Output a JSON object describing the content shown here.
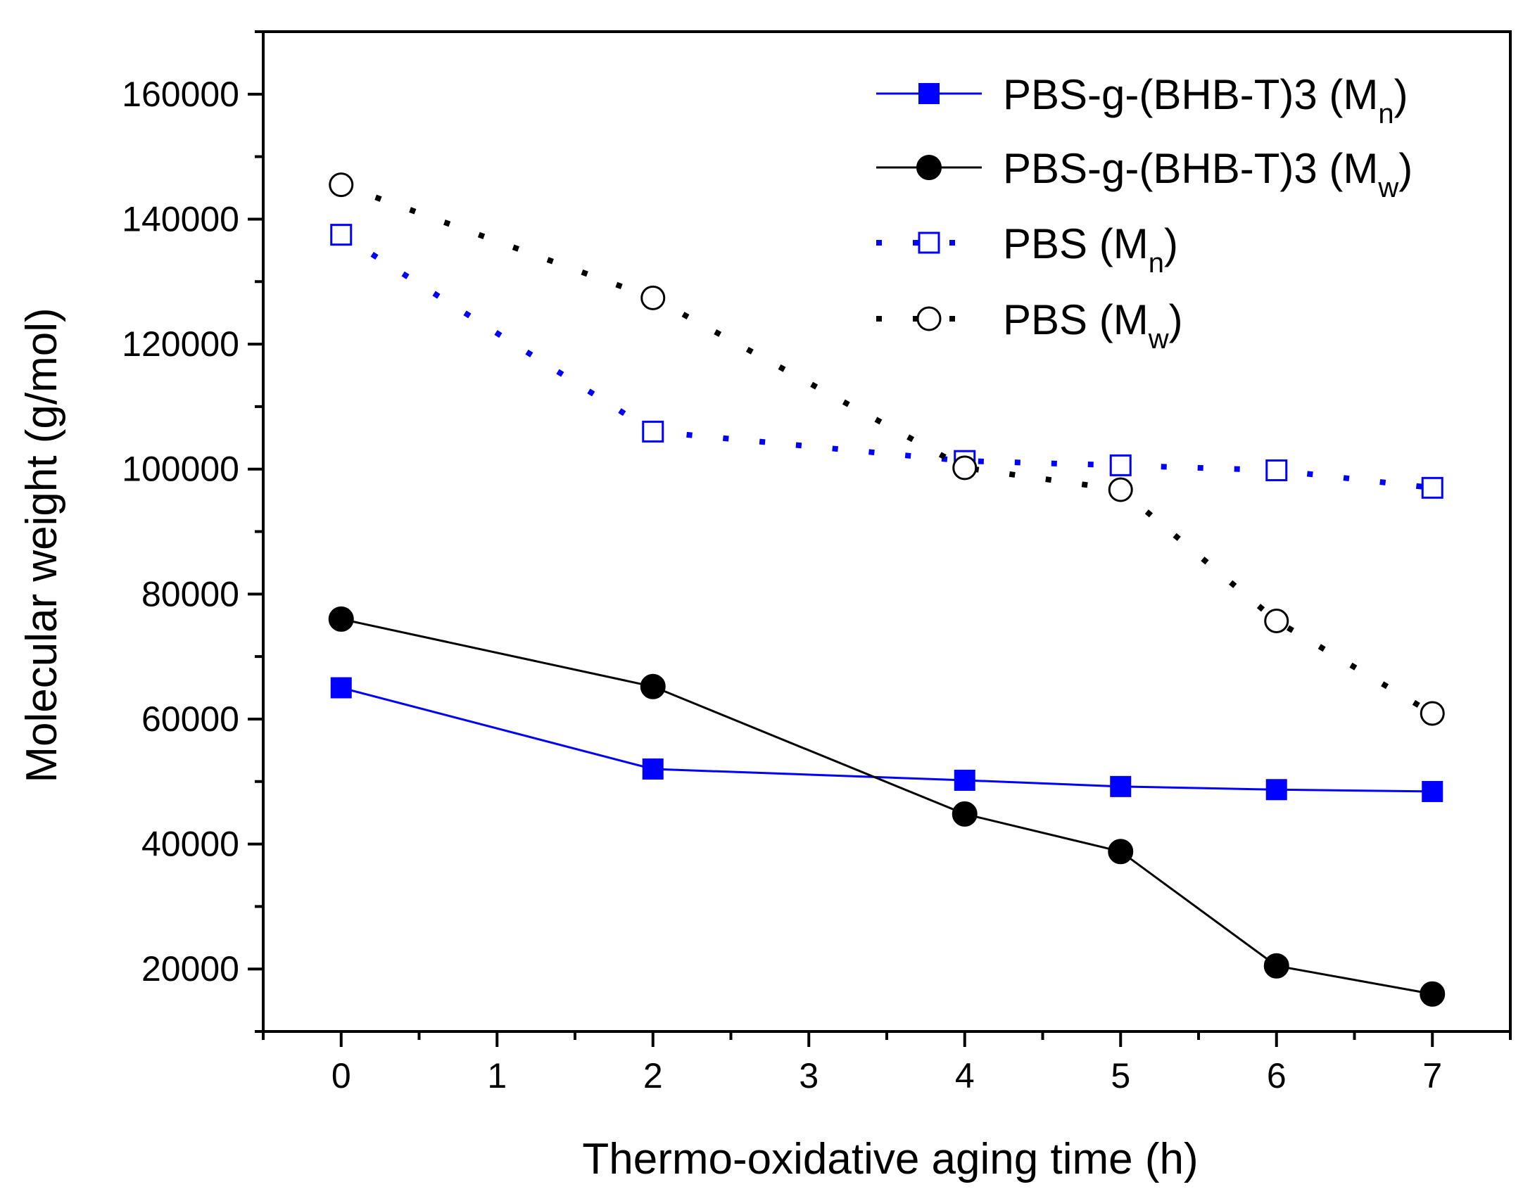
{
  "chart_data": {
    "type": "line",
    "title": "",
    "xlabel": "Thermo-oxidative aging time (h)",
    "ylabel": "Molecular weight (g/mol)",
    "xlim": [
      -0.5,
      7.5
    ],
    "ylim": [
      10000,
      170000
    ],
    "x_ticks": [
      0,
      1,
      2,
      3,
      4,
      5,
      6,
      7
    ],
    "x_tick_labels": [
      "0",
      "1",
      "2",
      "3",
      "4",
      "5",
      "6",
      "7"
    ],
    "y_ticks": [
      20000,
      40000,
      60000,
      80000,
      100000,
      120000,
      140000,
      160000
    ],
    "y_tick_labels": [
      "20000",
      "40000",
      "60000",
      "80000",
      "100000",
      "120000",
      "140000",
      "160000"
    ],
    "grid": false,
    "legend_position": "top-right",
    "series": [
      {
        "name": "PBS-g-(BHB-T)3 (Mn)",
        "label_main": "PBS-g-(BHB-T)3 (M",
        "label_sub": "n",
        "label_end": ")",
        "color": "#0000ff",
        "line_style": "solid",
        "marker": "square",
        "marker_fill": "filled",
        "x": [
          0,
          2,
          4,
          5,
          6,
          7
        ],
        "values": [
          65000,
          52000,
          50200,
          49200,
          48700,
          48400
        ]
      },
      {
        "name": "PBS-g-(BHB-T)3 (Mw)",
        "label_main": "PBS-g-(BHB-T)3 (M",
        "label_sub": "w",
        "label_end": ")",
        "color": "#000000",
        "line_style": "solid",
        "marker": "circle",
        "marker_fill": "filled",
        "x": [
          0,
          2,
          4,
          5,
          6,
          7
        ],
        "values": [
          76000,
          65200,
          44800,
          38800,
          20500,
          16000
        ]
      },
      {
        "name": "PBS (Mn)",
        "label_main": "PBS (M",
        "label_sub": "n",
        "label_end": ")",
        "color": "#0000ff",
        "line_style": "dotted",
        "marker": "square",
        "marker_fill": "open",
        "x": [
          0,
          2,
          4,
          5,
          6,
          7
        ],
        "values": [
          137500,
          106000,
          101300,
          100600,
          99800,
          97000
        ]
      },
      {
        "name": "PBS (Mw)",
        "label_main": "PBS (M",
        "label_sub": "w",
        "label_end": ")",
        "color": "#000000",
        "line_style": "dotted",
        "marker": "circle",
        "marker_fill": "open",
        "x": [
          0,
          2,
          4,
          5,
          6,
          7
        ],
        "values": [
          145500,
          127400,
          100200,
          96700,
          75700,
          60900
        ]
      }
    ]
  }
}
